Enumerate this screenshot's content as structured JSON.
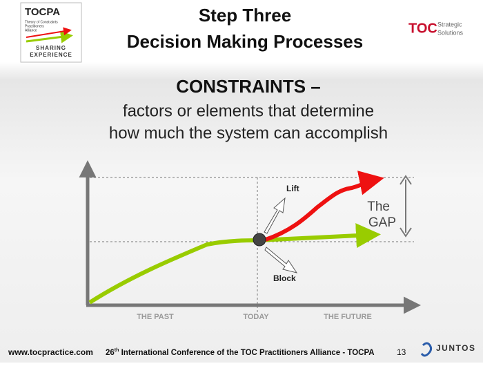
{
  "logo": {
    "title": "TOCPA",
    "lines": [
      "Theory of Constraints",
      "Practitioners",
      "Alliance"
    ],
    "tagline": [
      "SHARING",
      "EXPERIENCE"
    ]
  },
  "header": {
    "title": [
      "Step Three",
      "Decision Making Processes"
    ]
  },
  "partner_logo": {
    "mark": "TOC",
    "words": [
      "Strategic",
      "Solutions"
    ]
  },
  "heading": "CONSTRAINTS –",
  "subtitle": [
    "factors or elements that determine",
    "how much the system can accomplish"
  ],
  "diagram": {
    "lift": "Lift",
    "block": "Block",
    "gap": [
      "The",
      "GAP"
    ],
    "axis_labels": [
      "THE PAST",
      "TODAY",
      "THE FUTURE"
    ]
  },
  "footer": {
    "url": "www.tocpractice.com",
    "conference": {
      "number": "26",
      "suffix": "th",
      "text": " International Conference of the TOC Practitioners Alliance - TOCPA"
    },
    "page": "13",
    "brand": "JUNTOS"
  }
}
